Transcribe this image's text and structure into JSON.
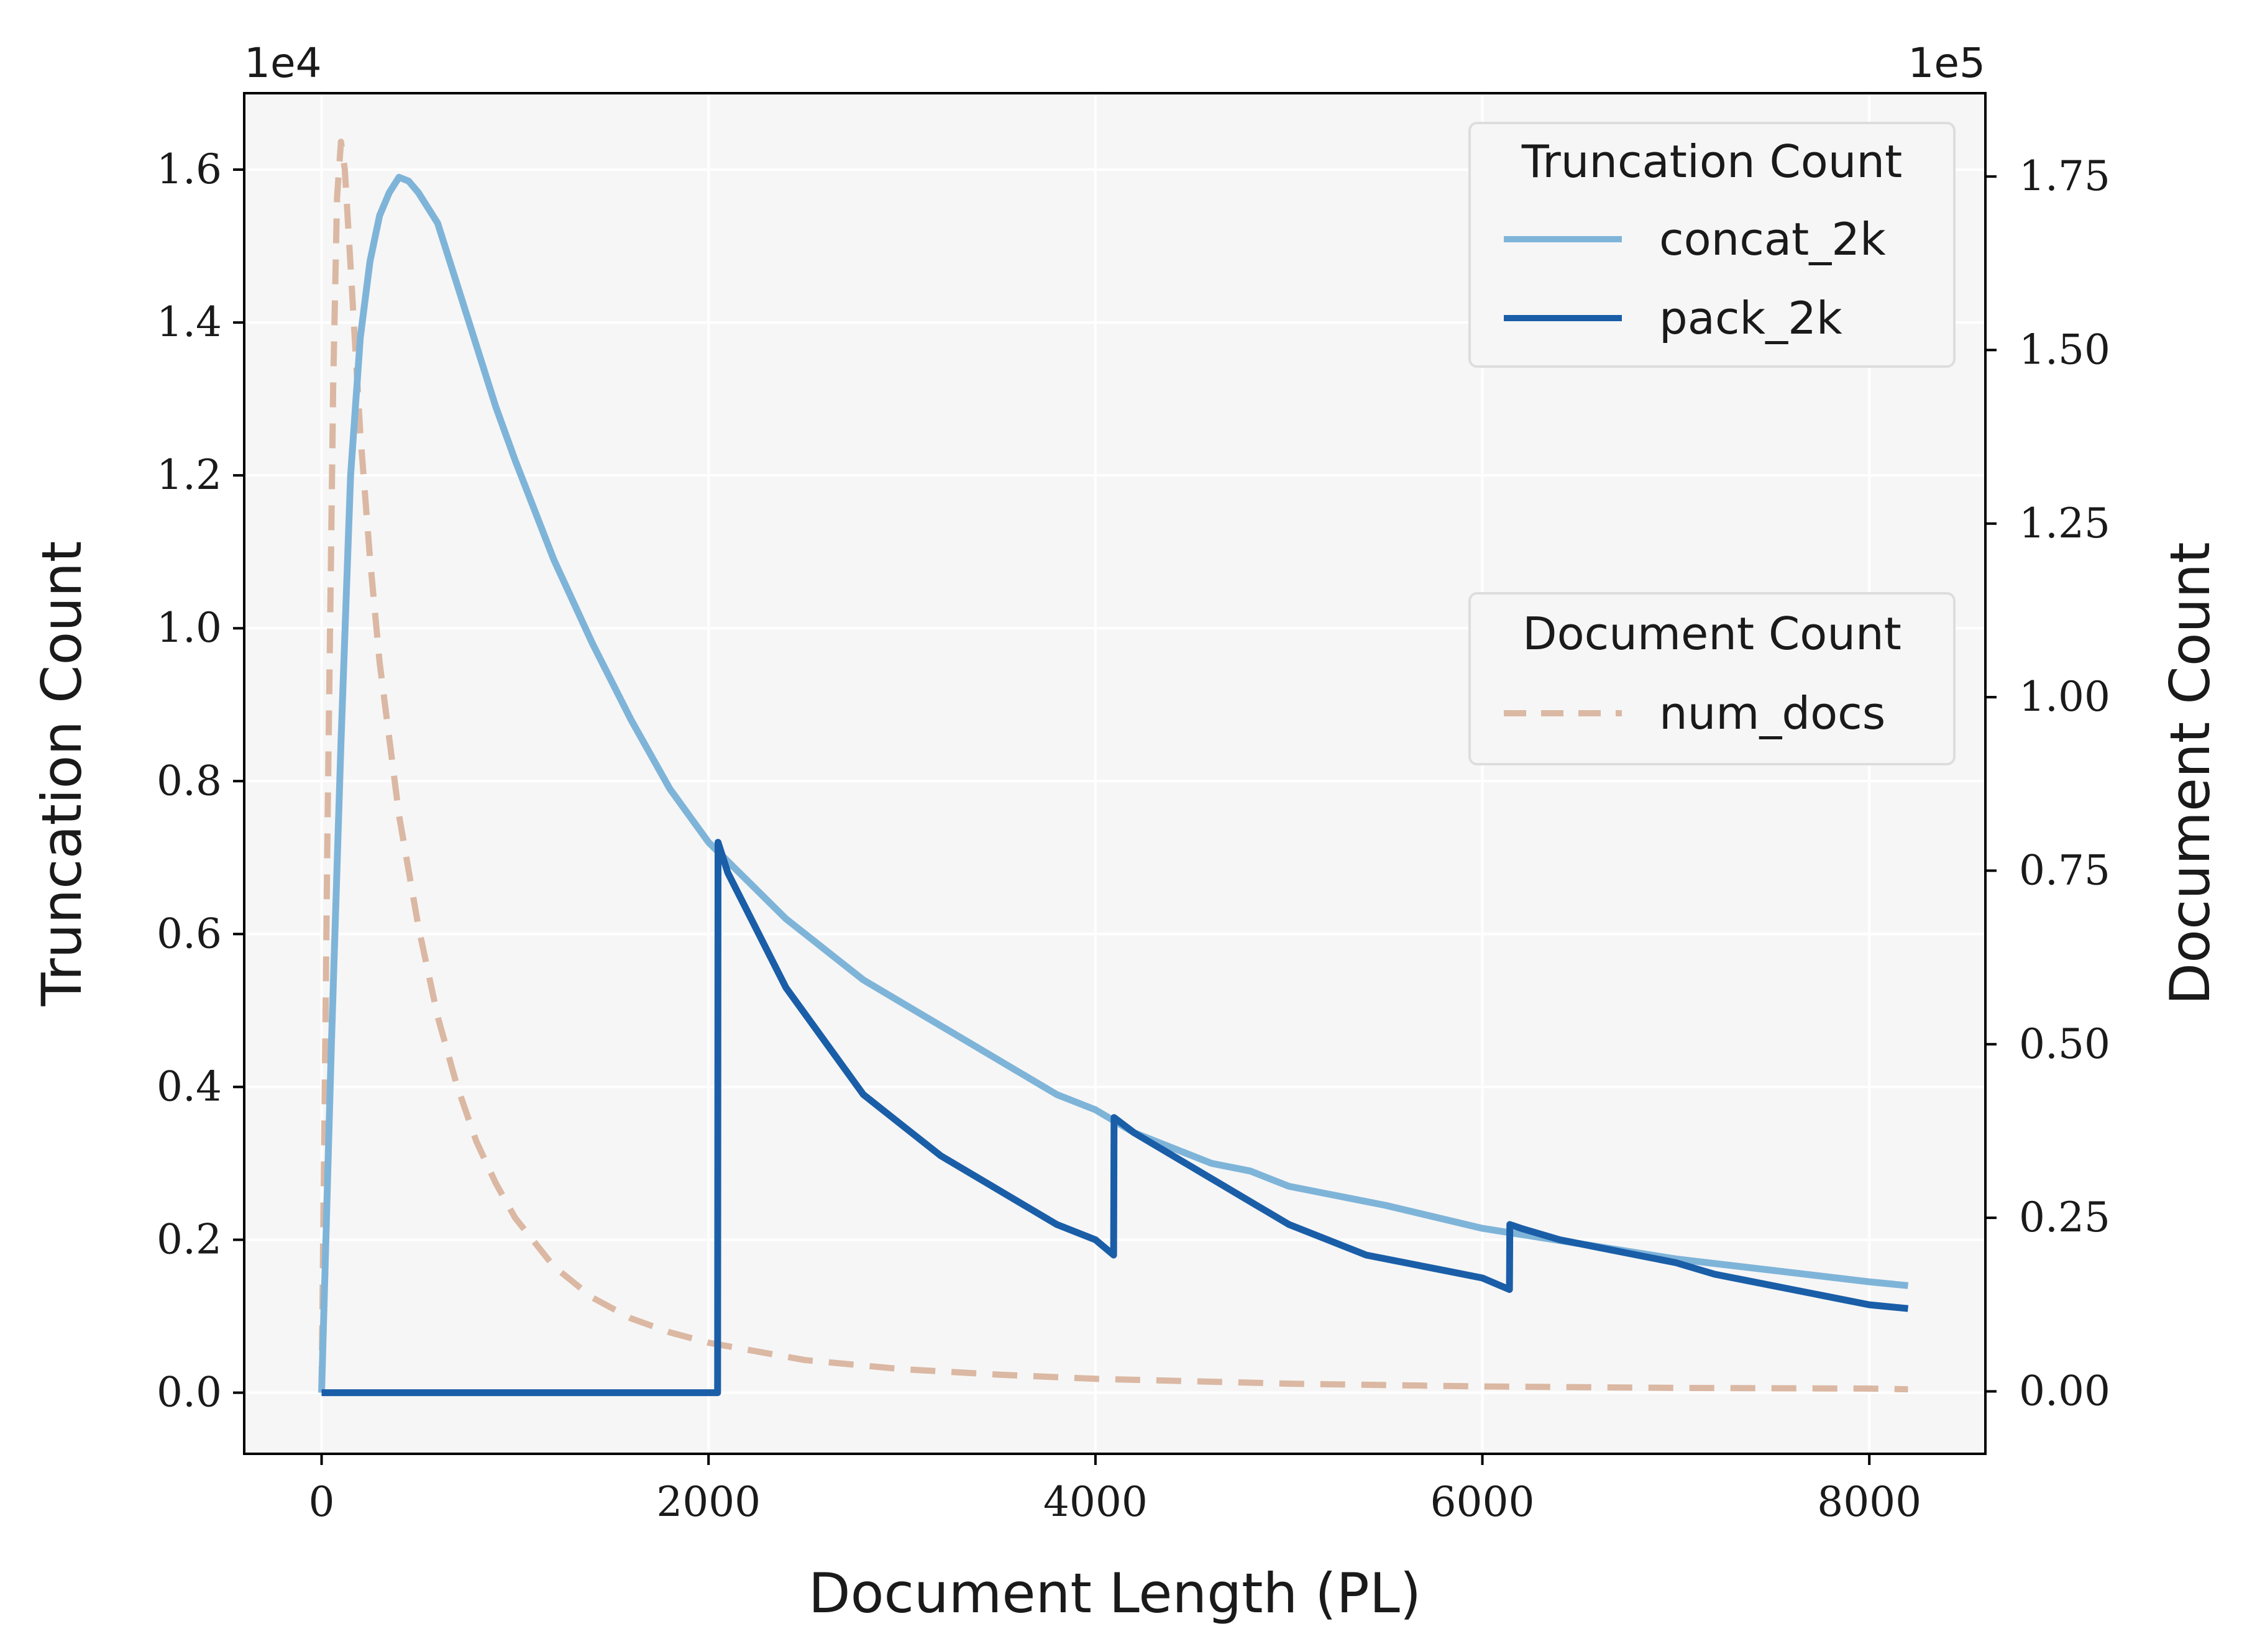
{
  "chart_data": {
    "type": "line",
    "xlabel": "Document Length (PL)",
    "ylabel": "Truncation Count",
    "y2label": "Document Count",
    "y_scale_label": "1e4",
    "y2_scale_label": "1e5",
    "xlim": [
      -400,
      8600
    ],
    "ylim": [
      -0.08,
      1.7
    ],
    "y2lim": [
      -0.09,
      1.87
    ],
    "x_ticks": [
      0,
      2000,
      4000,
      6000,
      8000
    ],
    "x_tick_labels": [
      "0",
      "2000",
      "4000",
      "6000",
      "8000"
    ],
    "y_ticks": [
      0.0,
      0.2,
      0.4,
      0.6,
      0.8,
      1.0,
      1.2,
      1.4,
      1.6
    ],
    "y_tick_labels": [
      "0.0",
      "0.2",
      "0.4",
      "0.6",
      "0.8",
      "1.0",
      "1.2",
      "1.4",
      "1.6"
    ],
    "y2_ticks": [
      0.0,
      0.25,
      0.5,
      0.75,
      1.0,
      1.25,
      1.5,
      1.75
    ],
    "y2_tick_labels": [
      "0.00",
      "0.25",
      "0.50",
      "0.75",
      "1.00",
      "1.25",
      "1.50",
      "1.75"
    ],
    "grid": true,
    "legends": [
      {
        "title": "Truncation Count",
        "placement": "upper-right",
        "entries": [
          "concat_2k",
          "pack_2k"
        ]
      },
      {
        "title": "Document Count",
        "placement": "center-right",
        "entries": [
          "num_docs"
        ]
      }
    ],
    "series": [
      {
        "name": "concat_2k",
        "axis": "left",
        "color": "#7fb4d9",
        "style": "solid",
        "x": [
          0,
          50,
          100,
          150,
          200,
          250,
          300,
          350,
          400,
          450,
          500,
          600,
          700,
          800,
          900,
          1000,
          1200,
          1400,
          1600,
          1800,
          2000,
          2200,
          2400,
          2600,
          2800,
          3000,
          3200,
          3400,
          3600,
          3800,
          4000,
          4200,
          4400,
          4600,
          4800,
          5000,
          5500,
          6000,
          6500,
          7000,
          7500,
          8000,
          8200
        ],
        "y": [
          0.0,
          0.45,
          0.85,
          1.2,
          1.38,
          1.48,
          1.54,
          1.57,
          1.59,
          1.585,
          1.57,
          1.53,
          1.45,
          1.37,
          1.29,
          1.22,
          1.09,
          0.98,
          0.88,
          0.79,
          0.72,
          0.67,
          0.62,
          0.58,
          0.54,
          0.51,
          0.48,
          0.45,
          0.42,
          0.39,
          0.37,
          0.34,
          0.32,
          0.3,
          0.29,
          0.27,
          0.245,
          0.215,
          0.195,
          0.175,
          0.16,
          0.145,
          0.14
        ]
      },
      {
        "name": "pack_2k",
        "axis": "left",
        "color": "#1a5ea8",
        "style": "solid",
        "x": [
          0,
          2047,
          2049,
          2100,
          2200,
          2400,
          2600,
          2800,
          3000,
          3200,
          3400,
          3600,
          3800,
          4000,
          4094,
          4096,
          4200,
          4400,
          4600,
          4800,
          5000,
          5200,
          5400,
          5600,
          5800,
          6000,
          6140,
          6142,
          6200,
          6400,
          6600,
          6800,
          7000,
          7200,
          7400,
          7600,
          7800,
          8000,
          8200
        ],
        "y": [
          0.0,
          0.0,
          0.72,
          0.68,
          0.63,
          0.53,
          0.46,
          0.39,
          0.35,
          0.31,
          0.28,
          0.25,
          0.22,
          0.2,
          0.18,
          0.36,
          0.34,
          0.31,
          0.28,
          0.25,
          0.22,
          0.2,
          0.18,
          0.17,
          0.16,
          0.15,
          0.135,
          0.22,
          0.215,
          0.2,
          0.19,
          0.18,
          0.17,
          0.155,
          0.145,
          0.135,
          0.125,
          0.115,
          0.11
        ]
      },
      {
        "name": "num_docs",
        "axis": "right",
        "color": "#dbb8a3",
        "style": "dashed",
        "x": [
          0,
          30,
          60,
          80,
          100,
          120,
          150,
          200,
          250,
          300,
          400,
          500,
          600,
          700,
          800,
          900,
          1000,
          1200,
          1400,
          1600,
          1800,
          2000,
          2500,
          3000,
          3500,
          4000,
          5000,
          6000,
          7000,
          8000,
          8200
        ],
        "y": [
          0.0,
          0.8,
          1.45,
          1.72,
          1.8,
          1.76,
          1.62,
          1.38,
          1.2,
          1.05,
          0.83,
          0.67,
          0.54,
          0.44,
          0.36,
          0.3,
          0.25,
          0.18,
          0.135,
          0.105,
          0.085,
          0.07,
          0.045,
          0.032,
          0.024,
          0.018,
          0.011,
          0.007,
          0.005,
          0.004,
          0.003
        ]
      }
    ]
  }
}
